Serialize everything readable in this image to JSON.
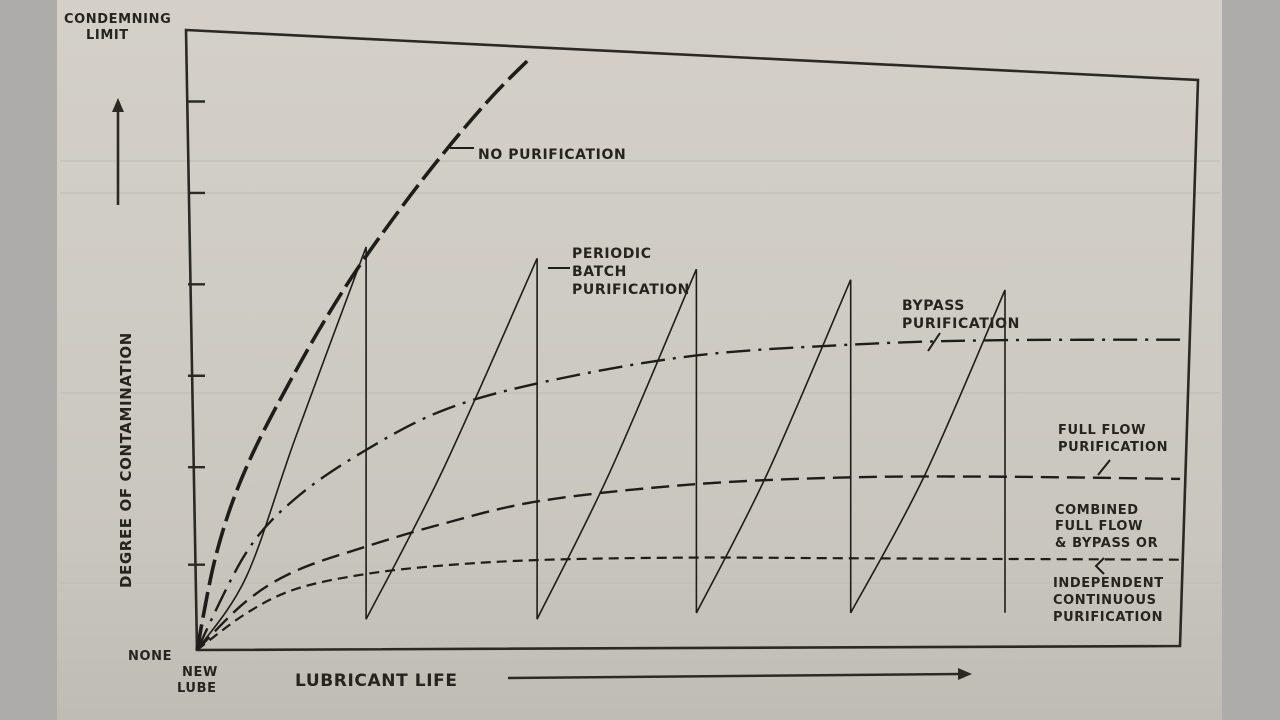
{
  "colors": {
    "background": "#aeacab",
    "paper": "#d0cdc5",
    "ink": "#26241f"
  },
  "chart_data": {
    "type": "line",
    "title": "",
    "xlabel": "LUBRICANT LIFE",
    "ylabel": "DEGREE OF CONTAMINATION",
    "x_origin_label": [
      "NEW",
      "LUBE"
    ],
    "y_origin_label": "NONE",
    "y_top_label": [
      "CONDEMNING",
      "LIMIT"
    ],
    "xlim": [
      0,
      100
    ],
    "ylim": [
      0,
      100
    ],
    "grid": false,
    "y_ticks": [
      14,
      30,
      45,
      60,
      75,
      90
    ],
    "legend_position": "inline-annotations",
    "series": [
      {
        "name": "NO PURIFICATION",
        "style": "long-dash-heavy",
        "x": [
          0,
          2,
          5,
          10,
          15,
          20,
          25,
          30,
          34
        ],
        "y": [
          0,
          16,
          30,
          46,
          60,
          72,
          83,
          93,
          100
        ]
      },
      {
        "name": "PERIODIC BATCH PURIFICATION",
        "style": "solid-thin-sawtooth",
        "x": [
          0,
          5,
          10,
          17.2,
          17.2,
          25,
          34.6,
          34.6,
          42,
          50.8,
          50.8,
          58,
          66.5,
          66.5,
          74,
          82.2,
          82.2
        ],
        "y": [
          0,
          12,
          35,
          67,
          5,
          30,
          66,
          5,
          30,
          65,
          6,
          30,
          64,
          6,
          30,
          63,
          6
        ]
      },
      {
        "name": "BYPASS PURIFICATION",
        "style": "dash-dot",
        "x": [
          0,
          5,
          10,
          17,
          25,
          35,
          50,
          65,
          80,
          100
        ],
        "y": [
          0,
          16,
          25,
          33,
          40,
          45,
          50,
          52.5,
          54,
          55
        ]
      },
      {
        "name": "FULL FLOW PURIFICATION",
        "style": "medium-dash",
        "x": [
          0,
          5,
          10,
          17,
          25,
          35,
          50,
          65,
          80,
          100
        ],
        "y": [
          0,
          8,
          13,
          17,
          21,
          25,
          28,
          29.5,
          30,
          30
        ]
      },
      {
        "name": "COMBINED FULL FLOW & BYPASS OR INDEPENDENT CONTINUOUS PURIFICATION",
        "style": "short-dash",
        "x": [
          0,
          5,
          10,
          17,
          25,
          35,
          50,
          65,
          80,
          100
        ],
        "y": [
          0,
          6,
          10,
          12.5,
          14,
          15,
          15.5,
          15.5,
          15.5,
          15.5
        ]
      }
    ]
  },
  "annotations": {
    "condemning_limit": [
      "CONDEMNING",
      "LIMIT"
    ],
    "none": "NONE",
    "new_lube": [
      "NEW",
      "LUBE"
    ],
    "x_axis_label": "LUBRICANT LIFE",
    "y_axis_label": "DEGREE OF CONTAMINATION",
    "no_purification": "NO PURIFICATION",
    "periodic_batch": [
      "PERIODIC",
      "BATCH",
      "PURIFICATION"
    ],
    "bypass": [
      "BYPASS",
      "PURIFICATION"
    ],
    "full_flow": [
      "FULL FLOW",
      "PURIFICATION"
    ],
    "combined_top": [
      "COMBINED",
      "FULL FLOW",
      "& BYPASS OR"
    ],
    "combined_bottom": [
      "INDEPENDENT",
      "CONTINUOUS",
      "PURIFICATION"
    ]
  }
}
